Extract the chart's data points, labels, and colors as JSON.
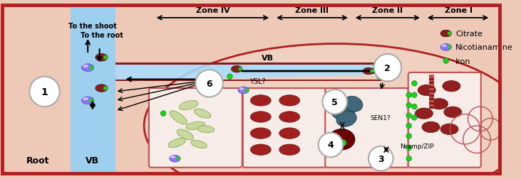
{
  "bg_color": "#eec9b8",
  "border_color": "#b02020",
  "vb_color": "#9ecfee",
  "nodule_fill": "#f0d0c0",
  "root_label": "Root",
  "vb_label": "VB",
  "shoot_label": "To the shoot",
  "root_label2": "To the root",
  "zone_labels": [
    "Zone IV",
    "Zone III",
    "Zone II",
    "Zone I"
  ],
  "vb_text": "VB",
  "ysl_text": "YSL?",
  "sen1_text": "SEN1?",
  "nramp_text": "Nramp/ZIP",
  "citrate_label": "Citrate",
  "na_label": "Nicotianamine",
  "iron_label": "Iron",
  "citrate_color": "#802020",
  "na_color_fill": "#8878ee",
  "iron_color": "#22cc22",
  "cell_border_color": "#c05050",
  "plastid_color": "#c8d8a0",
  "bacteroid_color": "#406878"
}
